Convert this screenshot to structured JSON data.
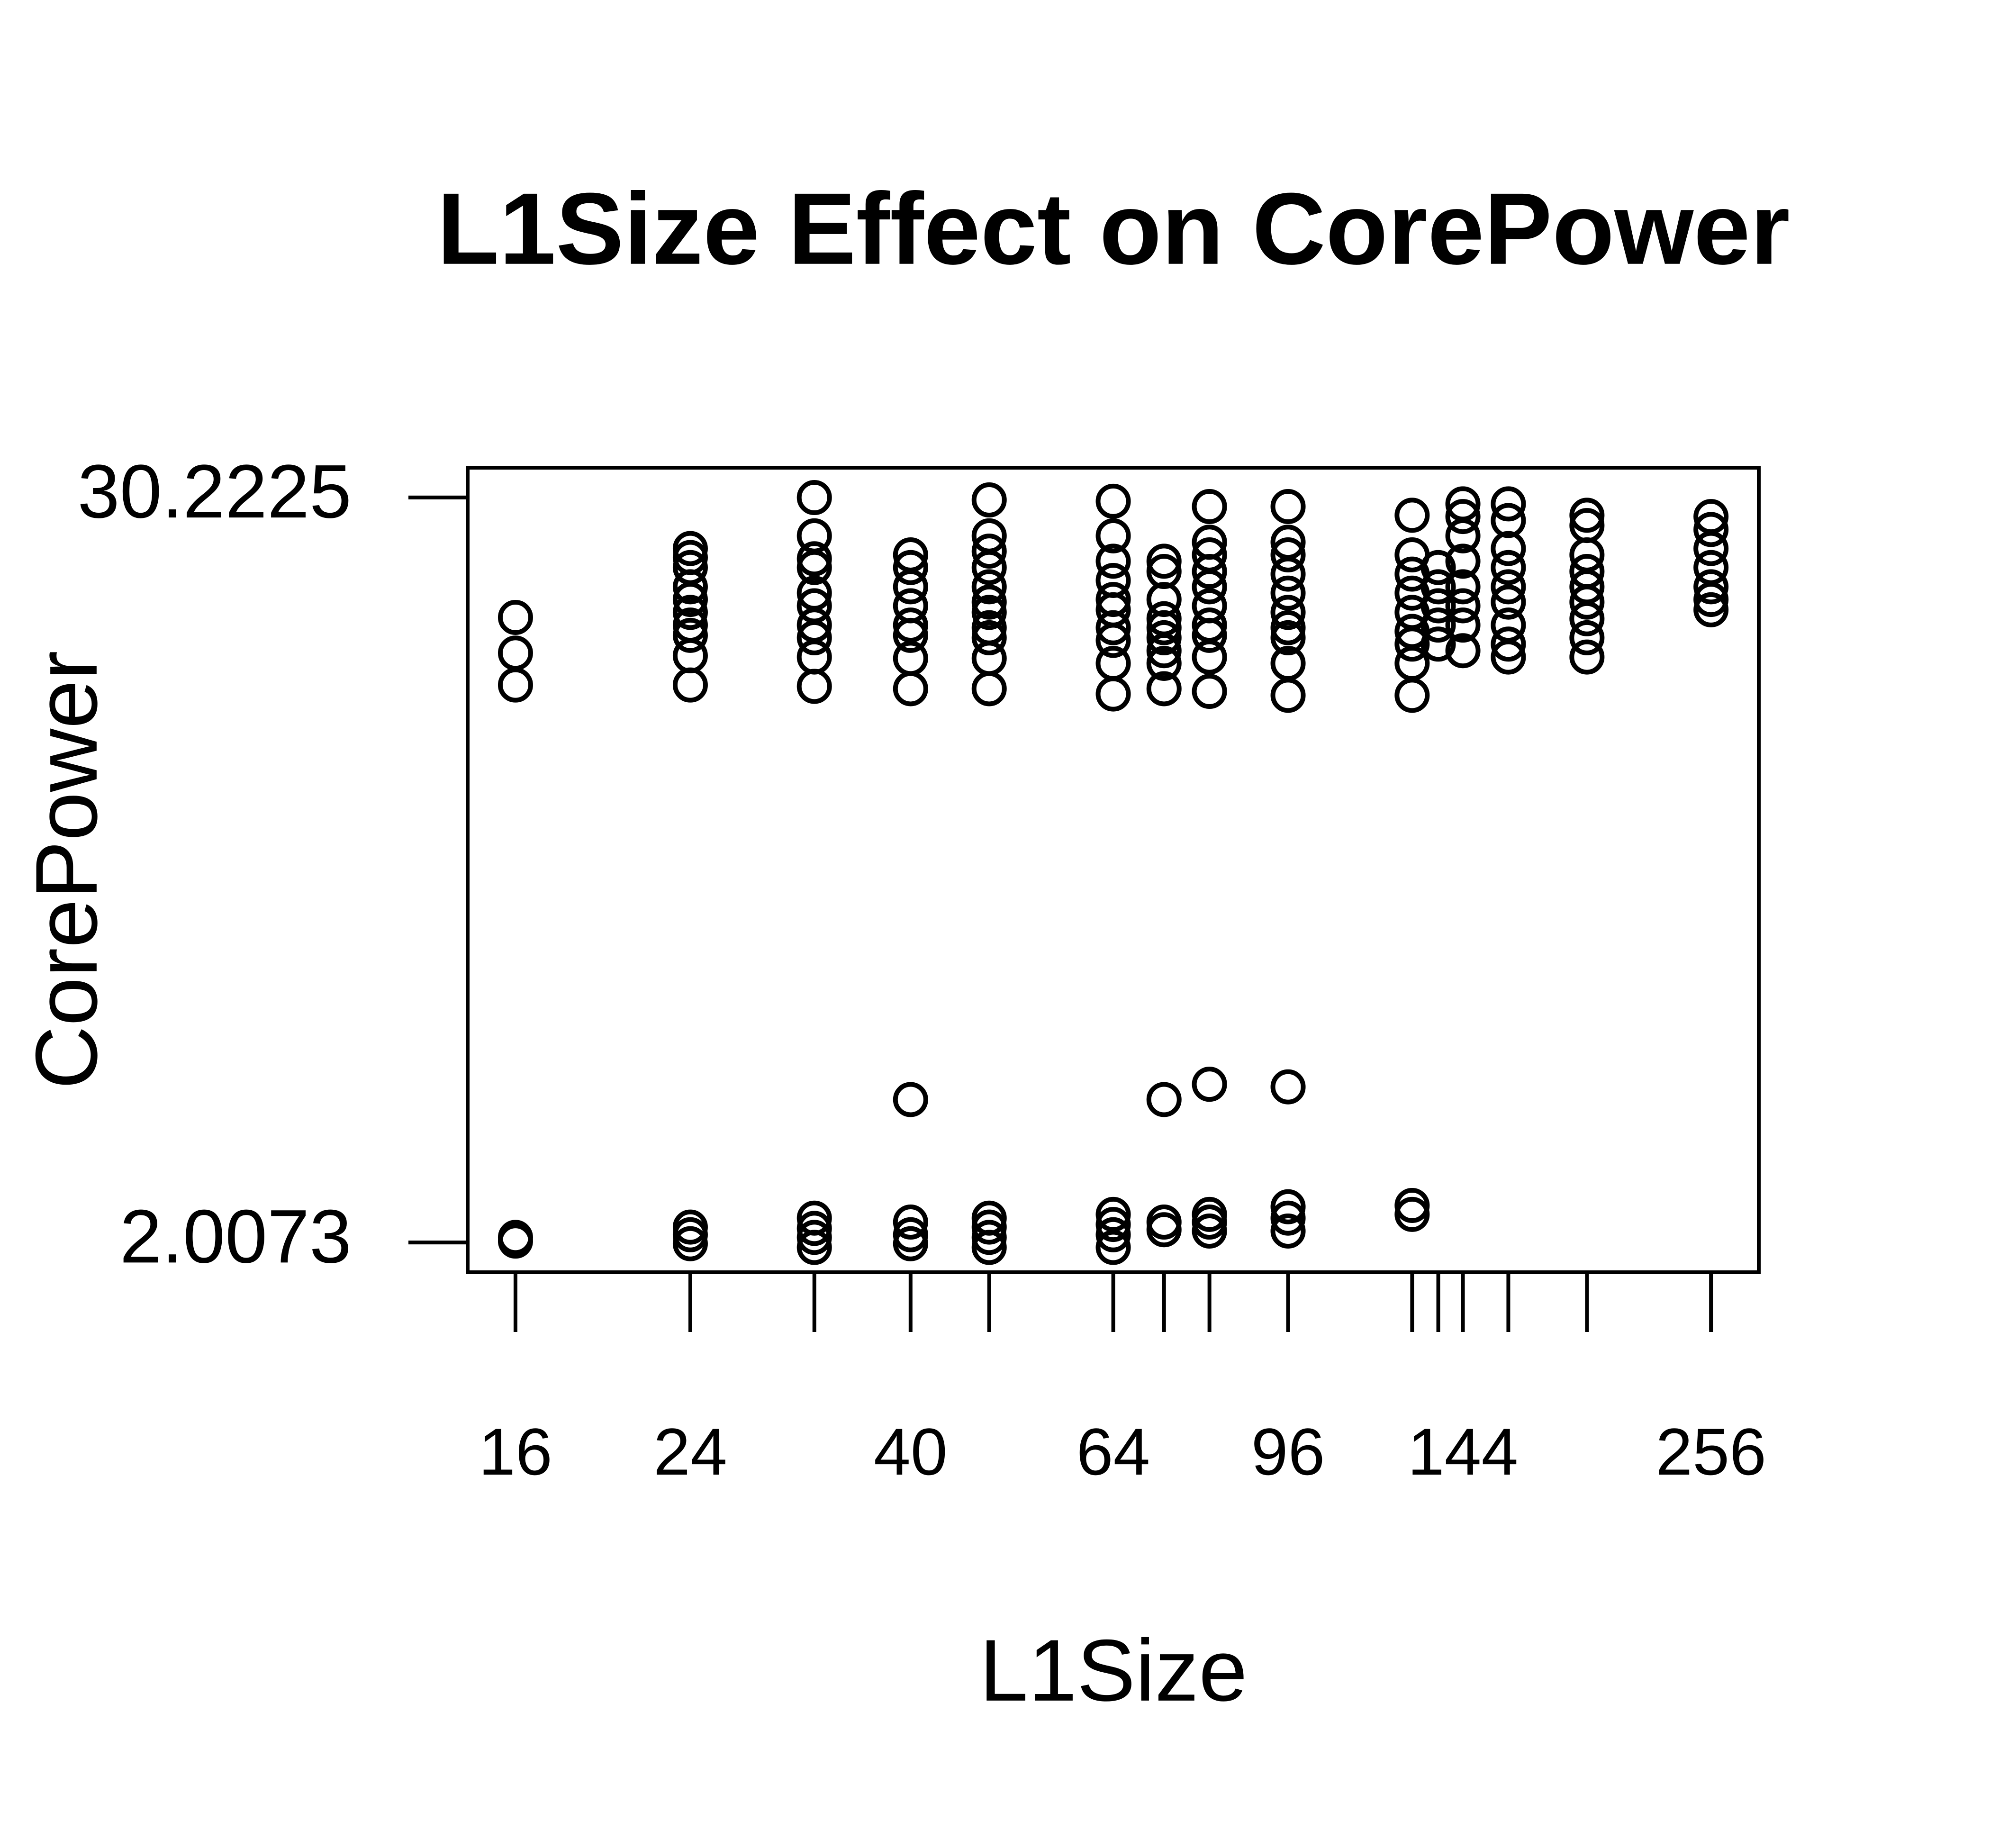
{
  "chart_data": {
    "type": "scatter",
    "title": "L1Size Effect on CorePower",
    "xlabel": "L1Size",
    "ylabel": "CorePower",
    "xlog": true,
    "color": "#000000",
    "xlim": [
      14.32,
      286.0
    ],
    "ylim": [
      0.8787,
      31.3511
    ],
    "xticks": [
      16,
      24,
      {
        "value": 32,
        "label": null
      },
      40,
      {
        "value": 48,
        "label": null
      },
      64,
      {
        "value": 72,
        "label": null
      },
      {
        "value": 80,
        "label": null
      },
      96,
      {
        "value": 128,
        "label": null
      },
      {
        "value": 136,
        "label": null
      },
      144,
      {
        "value": 160,
        "label": null
      },
      {
        "value": 192,
        "label": null
      },
      256
    ],
    "yticks": [
      2.0073,
      30.2225
    ],
    "x": [
      16,
      16,
      16,
      16,
      16,
      24,
      24,
      24,
      24,
      24,
      24,
      24,
      24,
      24,
      24,
      24,
      24,
      24,
      32,
      32,
      32,
      32,
      32,
      32,
      32,
      32,
      32,
      32,
      32,
      32,
      32,
      32,
      40,
      40,
      40,
      40,
      40,
      40,
      40,
      40,
      40,
      40,
      40,
      40,
      48,
      48,
      48,
      48,
      48,
      48,
      48,
      48,
      48,
      48,
      48,
      48,
      48,
      48,
      48,
      64,
      64,
      64,
      64,
      64,
      64,
      64,
      64,
      64,
      64,
      64,
      64,
      64,
      64,
      72,
      72,
      72,
      72,
      72,
      72,
      72,
      72,
      72,
      72,
      72,
      72,
      80,
      80,
      80,
      80,
      80,
      80,
      80,
      80,
      80,
      80,
      80,
      80,
      80,
      80,
      96,
      96,
      96,
      96,
      96,
      96,
      96,
      96,
      96,
      96,
      96,
      96,
      96,
      96,
      128,
      128,
      128,
      128,
      128,
      128,
      128,
      128,
      128,
      128,
      128,
      136,
      136,
      136,
      136,
      136,
      144,
      144,
      144,
      144,
      144,
      144,
      144,
      144,
      160,
      160,
      160,
      160,
      160,
      160,
      160,
      160,
      160,
      192,
      192,
      192,
      192,
      192,
      192,
      192,
      192,
      192,
      256,
      256,
      256,
      256,
      256,
      256,
      256
    ],
    "values": [
      25.68,
      24.33,
      23.12,
      2.2,
      2.06,
      28.29,
      27.95,
      27.57,
      26.84,
      26.36,
      25.87,
      25.39,
      25.0,
      24.23,
      23.12,
      2.59,
      2.3,
      1.96,
      30.22,
      28.77,
      27.9,
      27.57,
      26.6,
      26.12,
      25.39,
      24.91,
      24.18,
      23.07,
      2.93,
      2.54,
      2.2,
      1.82,
      28.05,
      27.57,
      26.84,
      26.12,
      25.39,
      25.0,
      24.13,
      22.98,
      7.42,
      2.78,
      2.3,
      1.96,
      30.13,
      28.77,
      28.19,
      27.57,
      26.84,
      26.26,
      25.87,
      25.29,
      24.91,
      24.13,
      22.98,
      2.93,
      2.59,
      2.2,
      1.82,
      30.08,
      28.77,
      27.81,
      27.08,
      26.36,
      25.97,
      25.29,
      24.81,
      23.94,
      22.78,
      3.07,
      2.69,
      2.3,
      1.82,
      27.81,
      27.42,
      26.36,
      25.63,
      25.29,
      24.91,
      24.42,
      23.94,
      22.98,
      7.42,
      2.78,
      2.49,
      29.88,
      28.53,
      28.05,
      27.42,
      26.84,
      26.12,
      25.39,
      25.0,
      24.18,
      22.88,
      8.0,
      3.07,
      2.78,
      2.44,
      29.88,
      28.53,
      28.05,
      27.32,
      26.6,
      25.87,
      25.29,
      24.91,
      23.94,
      22.73,
      7.9,
      3.36,
      2.93,
      2.44,
      29.55,
      28.05,
      27.32,
      26.6,
      25.87,
      25.15,
      24.67,
      23.94,
      22.73,
      3.41,
      3.07,
      27.57,
      26.84,
      26.12,
      25.39,
      24.67,
      29.98,
      29.5,
      28.77,
      27.81,
      26.84,
      26.12,
      25.39,
      24.42,
      29.98,
      29.35,
      28.29,
      27.57,
      26.84,
      26.26,
      25.39,
      24.67,
      24.18,
      29.55,
      29.16,
      28.05,
      27.42,
      26.84,
      26.26,
      25.63,
      24.91,
      24.18,
      29.5,
      29.01,
      28.29,
      27.57,
      26.84,
      26.36,
      25.97
    ]
  }
}
